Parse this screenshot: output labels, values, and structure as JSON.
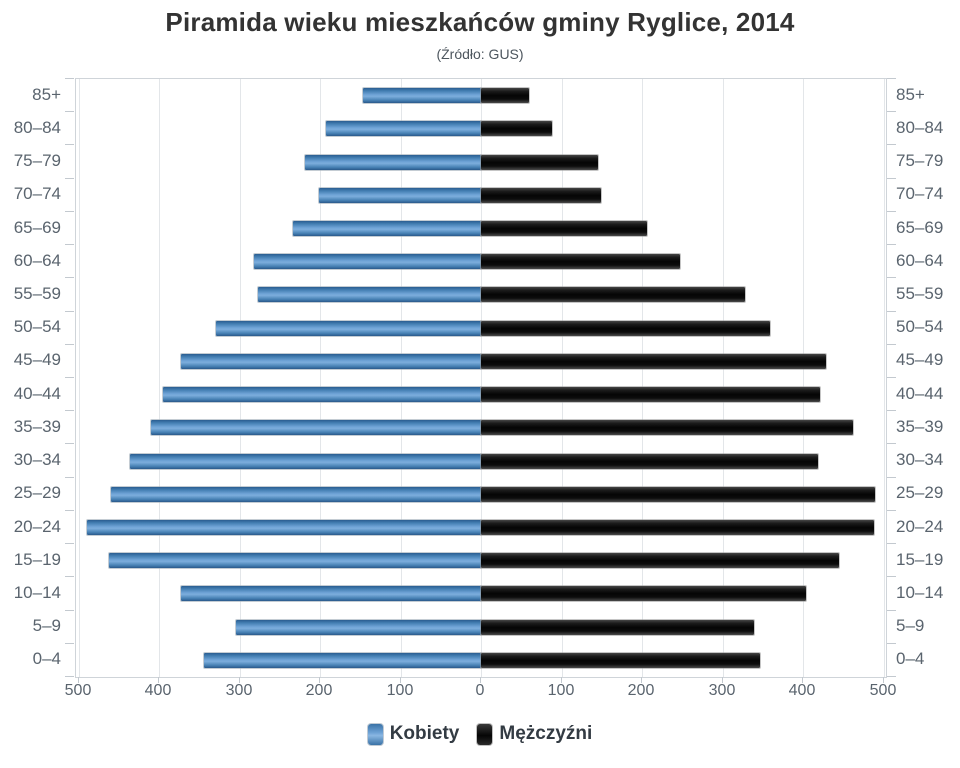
{
  "title": "Piramida wieku mieszkańców gminy Ryglice, 2014",
  "subtitle": "(Źródło: GUS)",
  "legend": {
    "women": "Kobiety",
    "men": "Mężczyźni"
  },
  "colors": {
    "women_bar": "#4c87ba",
    "men_bar": "#0a0a0a",
    "gridline": "#e3e6e9",
    "axis_frame": "#cfd4d9",
    "labels": "#5a646e",
    "title": "#333333"
  },
  "axis": {
    "x_ticks": [
      "500",
      "400",
      "300",
      "200",
      "100",
      "0",
      "100",
      "200",
      "300",
      "400",
      "500"
    ],
    "x_unit_max": 500
  },
  "chart_data": {
    "type": "bar",
    "subtype": "population-pyramid",
    "title": "Piramida wieku mieszkańców gminy Ryglice, 2014",
    "subtitle": "(Źródło: GUS)",
    "xlabel": "",
    "ylabel": "",
    "xlim": [
      -500,
      500
    ],
    "grid": true,
    "legend_position": "bottom",
    "categories": [
      "85+",
      "80–84",
      "75–79",
      "70–74",
      "65–69",
      "60–64",
      "55–59",
      "50–54",
      "45–49",
      "40–44",
      "35–39",
      "30–34",
      "25–29",
      "20–24",
      "15–19",
      "10–14",
      "5–9",
      "0–4"
    ],
    "series": [
      {
        "name": "Kobiety",
        "side": "left",
        "color": "#4c87ba",
        "values": [
          147,
          192,
          219,
          201,
          234,
          282,
          277,
          329,
          373,
          395,
          410,
          436,
          460,
          490,
          462,
          373,
          304,
          344
        ]
      },
      {
        "name": "Mężczyźni",
        "side": "right",
        "color": "#0a0a0a",
        "values": [
          60,
          88,
          145,
          149,
          206,
          247,
          328,
          359,
          428,
          421,
          462,
          419,
          490,
          488,
          445,
          404,
          339,
          346
        ]
      }
    ]
  }
}
